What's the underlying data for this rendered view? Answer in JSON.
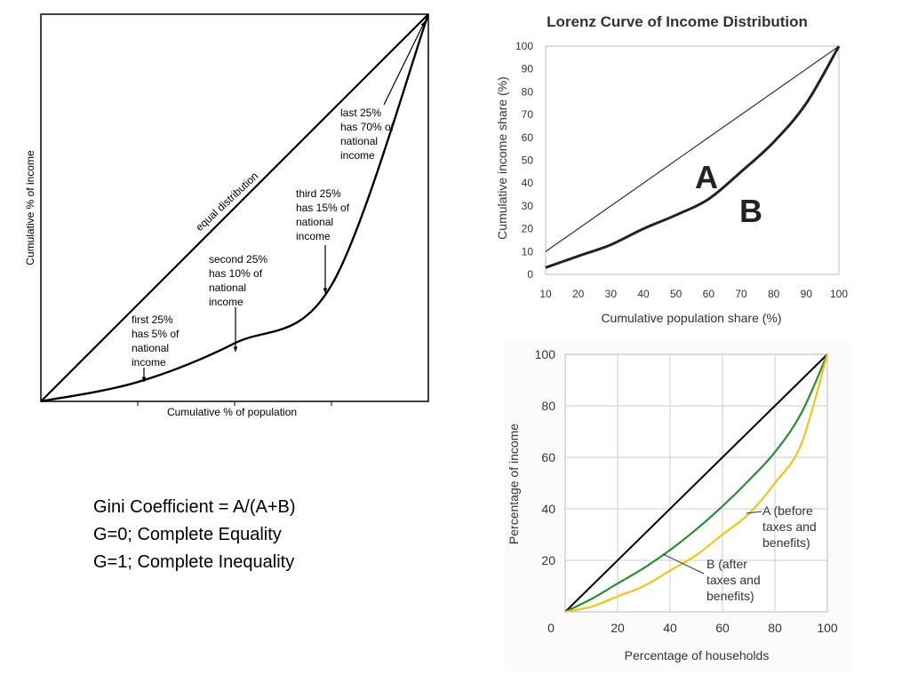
{
  "chart_data": [
    {
      "type": "line",
      "title": "",
      "xlabel": "Cumulative % of population",
      "ylabel": "Cumulative % of income",
      "xlim": [
        0,
        100
      ],
      "ylim": [
        0,
        100
      ],
      "grid": false,
      "series": [
        {
          "x": [
            0,
            100
          ],
          "y": [
            0,
            100
          ]
        },
        {
          "x": [
            0,
            25,
            50,
            75,
            100
          ],
          "y": [
            0,
            5,
            15,
            30,
            100
          ]
        }
      ],
      "annotations": [
        {
          "text": "equal distribution"
        },
        {
          "text": [
            "first 25%",
            "has 5% of",
            "national",
            "income"
          ]
        },
        {
          "text": [
            "second 25%",
            "has 10% of",
            "national",
            "income"
          ]
        },
        {
          "text": [
            "third 25%",
            "has 15% of",
            "national",
            "income"
          ]
        },
        {
          "text": [
            "last 25%",
            "has 70% of",
            "national",
            "income"
          ]
        }
      ]
    },
    {
      "type": "line",
      "title": "Lorenz Curve of Income Distribution",
      "xlabel": "Cumulative population share (%)",
      "ylabel": "Cumulative income share (%)",
      "xlim": [
        10,
        100
      ],
      "ylim": [
        0,
        100
      ],
      "xticks": [
        "10",
        "20",
        "30",
        "40",
        "50",
        "60",
        "70",
        "80",
        "90",
        "100"
      ],
      "yticks": [
        "0",
        "10",
        "20",
        "30",
        "40",
        "50",
        "60",
        "70",
        "80",
        "90",
        "100"
      ],
      "grid": false,
      "series": [
        {
          "x": [
            10,
            20,
            30,
            40,
            50,
            60,
            70,
            80,
            90,
            100
          ],
          "y": [
            10,
            20,
            30,
            40,
            50,
            60,
            70,
            80,
            90,
            100
          ]
        },
        {
          "x": [
            10,
            20,
            30,
            40,
            50,
            60,
            70,
            80,
            90,
            100
          ],
          "y": [
            3,
            8,
            13,
            20,
            26,
            33,
            45,
            58,
            75,
            100
          ]
        }
      ],
      "annotations": [
        {
          "text": "A"
        },
        {
          "text": "B"
        }
      ]
    },
    {
      "type": "line",
      "title": "",
      "xlabel": "Percentage of households",
      "ylabel": "Percentage of income",
      "xlim": [
        0,
        100
      ],
      "ylim": [
        0,
        100
      ],
      "xticks": [
        "0",
        "20",
        "40",
        "60",
        "80",
        "100"
      ],
      "yticks": [
        "20",
        "40",
        "60",
        "80",
        "100"
      ],
      "grid": true,
      "colors": {
        "equality": "#000000",
        "before": "#2e8b2e",
        "after": "#f0c419",
        "background": "#ffffff",
        "grid": "#cccccc"
      },
      "series": [
        {
          "x": [
            0,
            100
          ],
          "y": [
            0,
            100
          ]
        },
        {
          "x": [
            0,
            10,
            20,
            30,
            40,
            50,
            60,
            70,
            80,
            90,
            100
          ],
          "y": [
            0,
            5,
            11,
            17,
            24,
            32,
            41,
            51,
            62,
            77,
            100
          ]
        },
        {
          "x": [
            0,
            10,
            20,
            30,
            40,
            50,
            60,
            70,
            80,
            90,
            100
          ],
          "y": [
            0,
            2,
            6,
            10,
            16,
            22,
            30,
            38,
            50,
            65,
            100
          ]
        }
      ],
      "annotations": [
        {
          "text": [
            "A (before",
            "taxes and",
            "benefits)"
          ]
        },
        {
          "text": [
            "B (after",
            "taxes and",
            "benefits)"
          ]
        }
      ]
    }
  ],
  "gini": {
    "line1": "Gini Coefficient = A/(A+B)",
    "line2": "G=0; Complete Equality",
    "line3": "G=1; Complete Inequality"
  }
}
